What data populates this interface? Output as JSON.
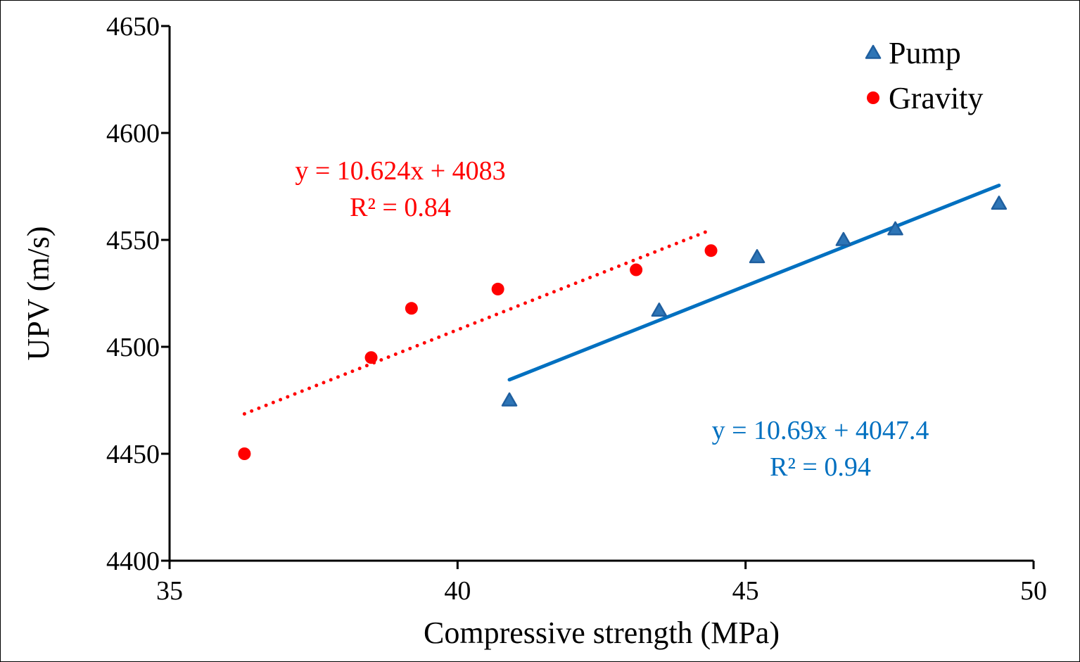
{
  "chart_data": {
    "type": "scatter",
    "title": "",
    "xlabel": "Compressive strength (MPa)",
    "ylabel": "UPV (m/s)",
    "xlim": [
      35,
      50
    ],
    "ylim": [
      4400,
      4650
    ],
    "xticks": [
      35,
      40,
      45,
      50
    ],
    "yticks": [
      4400,
      4450,
      4500,
      4550,
      4600,
      4650
    ],
    "grid": false,
    "legend_position": "top-right",
    "series": [
      {
        "name": "Pump",
        "marker": "triangle",
        "color": "#2E75B6",
        "points": [
          [
            40.9,
            4475
          ],
          [
            43.5,
            4517
          ],
          [
            45.2,
            4542
          ],
          [
            46.7,
            4550
          ],
          [
            47.6,
            4555
          ],
          [
            49.4,
            4567
          ]
        ],
        "trendline": {
          "style": "solid",
          "color": "#0070C0",
          "slope": 10.69,
          "intercept": 4047.4,
          "x_range": [
            40.9,
            49.4
          ],
          "equation": "y = 10.69x + 4047.4",
          "r_squared": "R² = 0.94"
        }
      },
      {
        "name": "Gravity",
        "marker": "circle",
        "color": "#FF0000",
        "points": [
          [
            36.3,
            4450
          ],
          [
            38.5,
            4495
          ],
          [
            39.2,
            4518
          ],
          [
            40.7,
            4527
          ],
          [
            43.1,
            4536
          ],
          [
            44.4,
            4545
          ]
        ],
        "trendline": {
          "style": "dotted",
          "color": "#FF0000",
          "slope": 10.624,
          "intercept": 4083,
          "x_range": [
            36.3,
            44.4
          ],
          "equation": "y = 10.624x + 4083",
          "r_squared": "R² = 0.84"
        }
      }
    ]
  }
}
